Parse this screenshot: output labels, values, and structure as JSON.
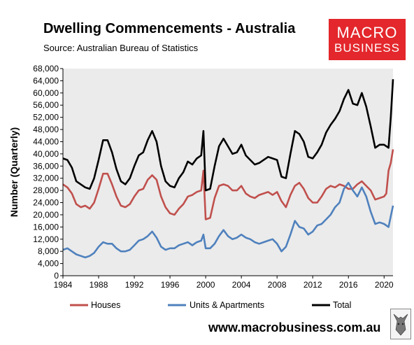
{
  "header": {
    "title": "Dwelling Commencements - Australia",
    "subtitle": "Source:  Australian Bureau of Statistics"
  },
  "logo": {
    "line1": "MACRO",
    "line2": "BUSINESS",
    "color": "#e3272c"
  },
  "footer": {
    "url": "www.macrobusiness.com.au"
  },
  "colors": {
    "houses": "#c0504d",
    "units": "#4f81bd",
    "total": "#000000",
    "plot_bg": "#ebebeb"
  },
  "chart_data": {
    "type": "line",
    "title": "Dwelling Commencements - Australia",
    "ylabel": "Number (Quarterly)",
    "xlabel": "",
    "xlim": [
      1984,
      2021
    ],
    "ylim": [
      0,
      68000
    ],
    "grid": false,
    "legend_position": "bottom",
    "x_ticks": [
      "1984",
      "1988",
      "1992",
      "1996",
      "2000",
      "2004",
      "2008",
      "2012",
      "2016",
      "2020"
    ],
    "y_ticks": [
      "0",
      "4,000",
      "8,000",
      "12,000",
      "16,000",
      "20,000",
      "24,000",
      "28,000",
      "32,000",
      "36,000",
      "40,000",
      "44,000",
      "48,000",
      "52,000",
      "56,000",
      "60,000",
      "64,000",
      "68,000"
    ],
    "series": [
      {
        "name": "Houses",
        "color": "#c0504d",
        "points": [
          [
            1984.0,
            30000
          ],
          [
            1984.5,
            29000
          ],
          [
            1985.0,
            27000
          ],
          [
            1985.5,
            23500
          ],
          [
            1986.0,
            22500
          ],
          [
            1986.5,
            23000
          ],
          [
            1987.0,
            22000
          ],
          [
            1987.5,
            24000
          ],
          [
            1988.0,
            28500
          ],
          [
            1988.5,
            33500
          ],
          [
            1989.0,
            33500
          ],
          [
            1989.5,
            30000
          ],
          [
            1990.0,
            26000
          ],
          [
            1990.5,
            23000
          ],
          [
            1991.0,
            22500
          ],
          [
            1991.5,
            23500
          ],
          [
            1992.0,
            26000
          ],
          [
            1992.5,
            28000
          ],
          [
            1993.0,
            28500
          ],
          [
            1993.5,
            31500
          ],
          [
            1994.0,
            33000
          ],
          [
            1994.5,
            31500
          ],
          [
            1995.0,
            26000
          ],
          [
            1995.5,
            22500
          ],
          [
            1996.0,
            20500
          ],
          [
            1996.5,
            20000
          ],
          [
            1997.0,
            22000
          ],
          [
            1997.5,
            23500
          ],
          [
            1998.0,
            26000
          ],
          [
            1998.5,
            26500
          ],
          [
            1999.0,
            27500
          ],
          [
            1999.5,
            28000
          ],
          [
            1999.75,
            34500
          ],
          [
            2000.0,
            18500
          ],
          [
            2000.5,
            19000
          ],
          [
            2001.0,
            25500
          ],
          [
            2001.5,
            29500
          ],
          [
            2002.0,
            30000
          ],
          [
            2002.5,
            29500
          ],
          [
            2003.0,
            28000
          ],
          [
            2003.5,
            28000
          ],
          [
            2004.0,
            29500
          ],
          [
            2004.5,
            27000
          ],
          [
            2005.0,
            26000
          ],
          [
            2005.5,
            25500
          ],
          [
            2006.0,
            26500
          ],
          [
            2006.5,
            27000
          ],
          [
            2007.0,
            27500
          ],
          [
            2007.5,
            26500
          ],
          [
            2008.0,
            27500
          ],
          [
            2008.5,
            24500
          ],
          [
            2009.0,
            22500
          ],
          [
            2009.5,
            26500
          ],
          [
            2010.0,
            29500
          ],
          [
            2010.5,
            30500
          ],
          [
            2011.0,
            28500
          ],
          [
            2011.5,
            25500
          ],
          [
            2012.0,
            24000
          ],
          [
            2012.5,
            24000
          ],
          [
            2013.0,
            26000
          ],
          [
            2013.5,
            28500
          ],
          [
            2014.0,
            29500
          ],
          [
            2014.5,
            29000
          ],
          [
            2015.0,
            30000
          ],
          [
            2015.5,
            29500
          ],
          [
            2016.0,
            28500
          ],
          [
            2016.5,
            28500
          ],
          [
            2017.0,
            30000
          ],
          [
            2017.5,
            31000
          ],
          [
            2018.0,
            29500
          ],
          [
            2018.5,
            28000
          ],
          [
            2019.0,
            25000
          ],
          [
            2019.5,
            25500
          ],
          [
            2020.0,
            26000
          ],
          [
            2020.25,
            27000
          ],
          [
            2020.5,
            34500
          ],
          [
            2020.75,
            37000
          ],
          [
            2021.0,
            41500
          ]
        ]
      },
      {
        "name": "Units & Apartments",
        "color": "#4f81bd",
        "points": [
          [
            1984.0,
            8500
          ],
          [
            1984.5,
            9000
          ],
          [
            1985.0,
            8000
          ],
          [
            1985.5,
            7000
          ],
          [
            1986.0,
            6500
          ],
          [
            1986.5,
            6000
          ],
          [
            1987.0,
            6500
          ],
          [
            1987.5,
            7500
          ],
          [
            1988.0,
            9500
          ],
          [
            1988.5,
            11000
          ],
          [
            1989.0,
            10500
          ],
          [
            1989.5,
            10500
          ],
          [
            1990.0,
            9000
          ],
          [
            1990.5,
            8000
          ],
          [
            1991.0,
            8000
          ],
          [
            1991.5,
            8500
          ],
          [
            1992.0,
            10000
          ],
          [
            1992.5,
            11500
          ],
          [
            1993.0,
            12000
          ],
          [
            1993.5,
            13000
          ],
          [
            1994.0,
            14500
          ],
          [
            1994.5,
            12500
          ],
          [
            1995.0,
            9500
          ],
          [
            1995.5,
            8500
          ],
          [
            1996.0,
            9000
          ],
          [
            1996.5,
            9000
          ],
          [
            1997.0,
            10000
          ],
          [
            1997.5,
            10500
          ],
          [
            1998.0,
            11000
          ],
          [
            1998.5,
            10000
          ],
          [
            1999.0,
            11000
          ],
          [
            1999.5,
            11500
          ],
          [
            1999.75,
            13500
          ],
          [
            2000.0,
            9000
          ],
          [
            2000.5,
            9000
          ],
          [
            2001.0,
            10500
          ],
          [
            2001.5,
            13000
          ],
          [
            2002.0,
            15000
          ],
          [
            2002.5,
            13000
          ],
          [
            2003.0,
            12000
          ],
          [
            2003.5,
            12500
          ],
          [
            2004.0,
            13500
          ],
          [
            2004.5,
            12500
          ],
          [
            2005.0,
            12000
          ],
          [
            2005.5,
            11000
          ],
          [
            2006.0,
            10500
          ],
          [
            2006.5,
            11000
          ],
          [
            2007.0,
            11500
          ],
          [
            2007.5,
            12000
          ],
          [
            2008.0,
            10500
          ],
          [
            2008.5,
            8000
          ],
          [
            2009.0,
            9500
          ],
          [
            2009.5,
            13500
          ],
          [
            2010.0,
            18000
          ],
          [
            2010.5,
            16000
          ],
          [
            2011.0,
            15500
          ],
          [
            2011.5,
            13500
          ],
          [
            2012.0,
            14500
          ],
          [
            2012.5,
            16500
          ],
          [
            2013.0,
            17000
          ],
          [
            2013.5,
            18500
          ],
          [
            2014.0,
            20000
          ],
          [
            2014.5,
            22500
          ],
          [
            2015.0,
            24000
          ],
          [
            2015.5,
            28500
          ],
          [
            2016.0,
            30500
          ],
          [
            2016.5,
            28000
          ],
          [
            2017.0,
            26000
          ],
          [
            2017.5,
            29000
          ],
          [
            2018.0,
            26000
          ],
          [
            2018.5,
            21000
          ],
          [
            2019.0,
            17000
          ],
          [
            2019.5,
            17500
          ],
          [
            2020.0,
            17000
          ],
          [
            2020.5,
            16000
          ],
          [
            2021.0,
            23000
          ]
        ]
      },
      {
        "name": "Total",
        "color": "#000000",
        "points": [
          [
            1984.0,
            38500
          ],
          [
            1984.5,
            38000
          ],
          [
            1985.0,
            35500
          ],
          [
            1985.5,
            31000
          ],
          [
            1986.0,
            30000
          ],
          [
            1986.5,
            29000
          ],
          [
            1987.0,
            28500
          ],
          [
            1987.5,
            32000
          ],
          [
            1988.0,
            38000
          ],
          [
            1988.5,
            44500
          ],
          [
            1989.0,
            44500
          ],
          [
            1989.5,
            40500
          ],
          [
            1990.0,
            35000
          ],
          [
            1990.5,
            31000
          ],
          [
            1991.0,
            30000
          ],
          [
            1991.5,
            32000
          ],
          [
            1992.0,
            36000
          ],
          [
            1992.5,
            39500
          ],
          [
            1993.0,
            40500
          ],
          [
            1993.5,
            44500
          ],
          [
            1994.0,
            47500
          ],
          [
            1994.5,
            44000
          ],
          [
            1995.0,
            36000
          ],
          [
            1995.5,
            31000
          ],
          [
            1996.0,
            29500
          ],
          [
            1996.5,
            29000
          ],
          [
            1997.0,
            32000
          ],
          [
            1997.5,
            34000
          ],
          [
            1998.0,
            37500
          ],
          [
            1998.5,
            36500
          ],
          [
            1999.0,
            38500
          ],
          [
            1999.5,
            39500
          ],
          [
            1999.75,
            47500
          ],
          [
            2000.0,
            28000
          ],
          [
            2000.5,
            28500
          ],
          [
            2001.0,
            36000
          ],
          [
            2001.5,
            42500
          ],
          [
            2002.0,
            45000
          ],
          [
            2002.5,
            42500
          ],
          [
            2003.0,
            40000
          ],
          [
            2003.5,
            40500
          ],
          [
            2004.0,
            43000
          ],
          [
            2004.5,
            39500
          ],
          [
            2005.0,
            38000
          ],
          [
            2005.5,
            36500
          ],
          [
            2006.0,
            37000
          ],
          [
            2006.5,
            38000
          ],
          [
            2007.0,
            39000
          ],
          [
            2007.5,
            38500
          ],
          [
            2008.0,
            38000
          ],
          [
            2008.5,
            32500
          ],
          [
            2009.0,
            32000
          ],
          [
            2009.5,
            40000
          ],
          [
            2010.0,
            47500
          ],
          [
            2010.5,
            46500
          ],
          [
            2011.0,
            44000
          ],
          [
            2011.5,
            39000
          ],
          [
            2012.0,
            38500
          ],
          [
            2012.5,
            40500
          ],
          [
            2013.0,
            43000
          ],
          [
            2013.5,
            47000
          ],
          [
            2014.0,
            49500
          ],
          [
            2014.5,
            51500
          ],
          [
            2015.0,
            54000
          ],
          [
            2015.5,
            58000
          ],
          [
            2016.0,
            61000
          ],
          [
            2016.5,
            56500
          ],
          [
            2017.0,
            56000
          ],
          [
            2017.5,
            60000
          ],
          [
            2018.0,
            55500
          ],
          [
            2018.5,
            49000
          ],
          [
            2019.0,
            42000
          ],
          [
            2019.5,
            43000
          ],
          [
            2020.0,
            43000
          ],
          [
            2020.5,
            42000
          ],
          [
            2020.75,
            52000
          ],
          [
            2021.0,
            64500
          ]
        ]
      }
    ]
  }
}
